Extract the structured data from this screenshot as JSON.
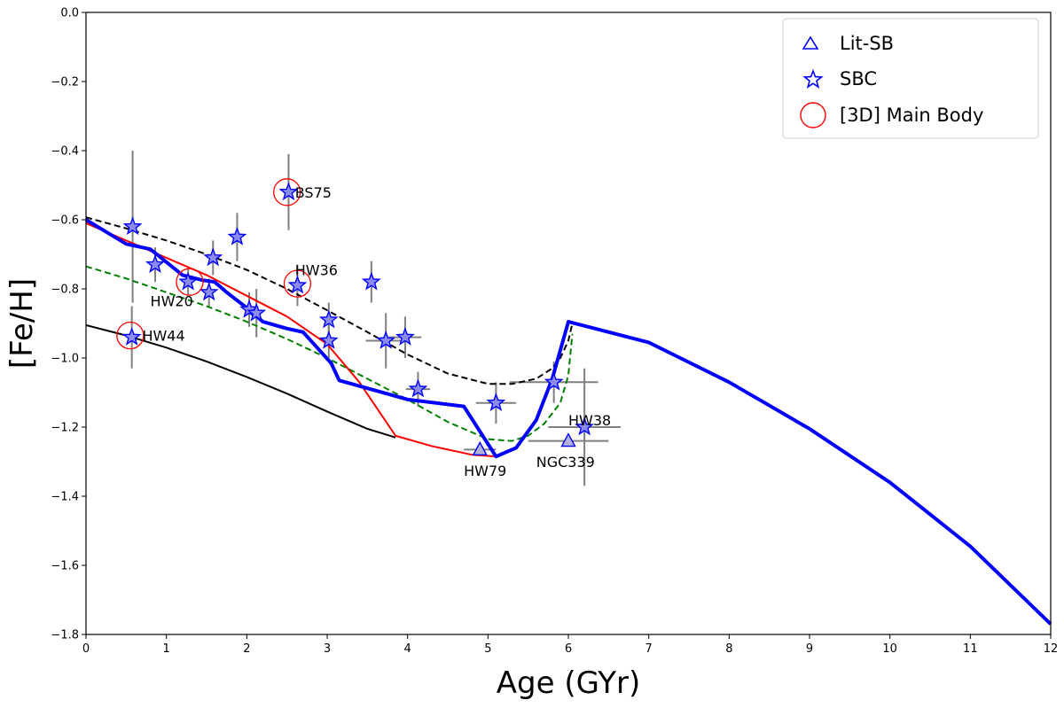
{
  "chart_data": {
    "type": "line",
    "title": "",
    "xlabel": "Age (GYr)",
    "ylabel": "[Fe/H]",
    "xlim": [
      0,
      12
    ],
    "ylim": [
      -1.8,
      0.0
    ],
    "xticks": [
      0,
      1,
      2,
      3,
      4,
      5,
      6,
      7,
      8,
      9,
      10,
      11,
      12
    ],
    "yticks": [
      0.0,
      -0.2,
      -0.4,
      -0.6,
      -0.8,
      -1.0,
      -1.2,
      -1.4,
      -1.6,
      -1.8
    ],
    "xtick_labels": [
      "0",
      "1",
      "2",
      "3",
      "4",
      "5",
      "6",
      "7",
      "8",
      "9",
      "10",
      "11",
      "12"
    ],
    "ytick_labels": [
      "0.0",
      "−0.2",
      "−0.4",
      "−0.6",
      "−0.8",
      "−1.0",
      "−1.2",
      "−1.4",
      "−1.6",
      "−1.8"
    ],
    "grid": false,
    "legend_position": "top-right",
    "legend": [
      {
        "label": "Lit-SB",
        "marker": "triangle",
        "color": "#0000ff"
      },
      {
        "label": "SBC",
        "marker": "star",
        "color": "#0000ff"
      },
      {
        "label": "[3D] Main Body",
        "marker": "circle",
        "color": "#ff0000"
      }
    ],
    "lines": [
      {
        "style": "dashed",
        "color": "#000000",
        "width": 2,
        "points": [
          [
            0,
            -0.593
          ],
          [
            0.5,
            -0.625
          ],
          [
            1,
            -0.66
          ],
          [
            1.5,
            -0.7
          ],
          [
            2,
            -0.745
          ],
          [
            2.5,
            -0.8
          ],
          [
            3,
            -0.862
          ],
          [
            3.5,
            -0.925
          ],
          [
            4,
            -0.99
          ],
          [
            4.5,
            -1.045
          ],
          [
            5,
            -1.075
          ],
          [
            5.3,
            -1.075
          ],
          [
            5.6,
            -1.06
          ],
          [
            5.8,
            -1.03
          ],
          [
            5.9,
            -1.0
          ],
          [
            6.0,
            -0.95
          ],
          [
            6.05,
            -0.9
          ]
        ]
      },
      {
        "style": "dashed",
        "color": "#008000",
        "width": 2,
        "points": [
          [
            0,
            -0.735
          ],
          [
            0.5,
            -0.77
          ],
          [
            1,
            -0.81
          ],
          [
            1.5,
            -0.85
          ],
          [
            2,
            -0.895
          ],
          [
            2.5,
            -0.945
          ],
          [
            3,
            -1.0
          ],
          [
            3.5,
            -1.06
          ],
          [
            4,
            -1.12
          ],
          [
            4.5,
            -1.185
          ],
          [
            5,
            -1.235
          ],
          [
            5.3,
            -1.24
          ],
          [
            5.5,
            -1.225
          ],
          [
            5.7,
            -1.19
          ],
          [
            5.9,
            -1.13
          ],
          [
            6.0,
            -1.05
          ],
          [
            6.05,
            -0.93
          ]
        ]
      },
      {
        "style": "solid",
        "color": "#000000",
        "width": 2,
        "points": [
          [
            0,
            -0.905
          ],
          [
            0.5,
            -0.935
          ],
          [
            1,
            -0.97
          ],
          [
            1.5,
            -1.01
          ],
          [
            2,
            -1.055
          ],
          [
            2.5,
            -1.103
          ],
          [
            3,
            -1.155
          ],
          [
            3.5,
            -1.205
          ],
          [
            3.85,
            -1.23
          ]
        ]
      },
      {
        "style": "solid",
        "color": "#ff0000",
        "width": 2,
        "points": [
          [
            0,
            -0.61
          ],
          [
            0.55,
            -0.665
          ],
          [
            1.0,
            -0.71
          ],
          [
            1.5,
            -0.76
          ],
          [
            2.0,
            -0.82
          ],
          [
            2.5,
            -0.88
          ],
          [
            3.0,
            -0.96
          ],
          [
            3.4,
            -1.07
          ],
          [
            3.85,
            -1.225
          ],
          [
            4.3,
            -1.255
          ],
          [
            4.8,
            -1.28
          ],
          [
            5.1,
            -1.285
          ]
        ]
      },
      {
        "style": "solid",
        "color": "#0000ff",
        "width": 4,
        "points": [
          [
            0,
            -0.6
          ],
          [
            0.5,
            -0.67
          ],
          [
            0.8,
            -0.685
          ],
          [
            1.2,
            -0.76
          ],
          [
            1.45,
            -0.775
          ],
          [
            1.6,
            -0.78
          ],
          [
            1.75,
            -0.81
          ],
          [
            2.0,
            -0.855
          ],
          [
            2.2,
            -0.895
          ],
          [
            2.5,
            -0.915
          ],
          [
            2.7,
            -0.925
          ],
          [
            3.05,
            -1.015
          ],
          [
            3.15,
            -1.065
          ],
          [
            4.0,
            -1.12
          ],
          [
            4.7,
            -1.14
          ],
          [
            5.1,
            -1.285
          ],
          [
            5.35,
            -1.26
          ],
          [
            5.6,
            -1.18
          ],
          [
            5.8,
            -1.06
          ],
          [
            6.0,
            -0.895
          ],
          [
            7,
            -0.955
          ],
          [
            8,
            -1.07
          ],
          [
            9,
            -1.205
          ],
          [
            10,
            -1.36
          ],
          [
            11,
            -1.545
          ],
          [
            12,
            -1.77
          ]
        ]
      }
    ],
    "sbc_points": [
      {
        "x": 0.58,
        "y": -0.62,
        "yerr": 0.22
      },
      {
        "x": 0.86,
        "y": -0.73,
        "yerr": 0.05
      },
      {
        "x": 1.27,
        "y": -0.78,
        "yerr": 0.04
      },
      {
        "x": 1.53,
        "y": -0.81,
        "yerr": 0.04
      },
      {
        "x": 1.58,
        "y": -0.71,
        "yerr": 0.05
      },
      {
        "x": 1.88,
        "y": -0.65,
        "yerr": 0.07
      },
      {
        "x": 2.03,
        "y": -0.86,
        "yerr": 0.05
      },
      {
        "x": 2.12,
        "y": -0.87,
        "yerr": 0.07
      },
      {
        "x": 2.52,
        "y": -0.52,
        "yerr": 0.11
      },
      {
        "x": 2.63,
        "y": -0.79,
        "yerr": 0.06
      },
      {
        "x": 3.02,
        "y": -0.89,
        "yerr": 0.05
      },
      {
        "x": 3.02,
        "y": -0.95,
        "yerr": 0.05
      },
      {
        "x": 3.55,
        "y": -0.78,
        "yerr": 0.06
      },
      {
        "x": 3.73,
        "y": -0.95,
        "yerr": 0.08,
        "xerr": 0.25
      },
      {
        "x": 3.97,
        "y": -0.94,
        "yerr": 0.06,
        "xerr": 0.2
      },
      {
        "x": 4.13,
        "y": -1.09,
        "yerr": 0.05,
        "xerr": 0.15
      },
      {
        "x": 5.1,
        "y": -1.13,
        "yerr": 0.06,
        "xerr": 0.25
      },
      {
        "x": 5.82,
        "y": -1.07,
        "yerr": 0.06,
        "xerr": 0.55
      },
      {
        "x": 0.57,
        "y": -0.94,
        "yerr": 0.09
      },
      {
        "x": 6.2,
        "y": -1.2,
        "yerr": 0.17,
        "xerr": 0.45
      }
    ],
    "lit_points": [
      {
        "x": 4.9,
        "y": -1.265,
        "yerr": 0.0,
        "xerr": 0.2
      },
      {
        "x": 6.0,
        "y": -1.24,
        "yerr": 0.0,
        "xerr": 0.5
      }
    ],
    "main_body_circles": [
      {
        "x": 0.55,
        "y": -0.935
      },
      {
        "x": 1.29,
        "y": -0.78
      },
      {
        "x": 2.5,
        "y": -0.52
      },
      {
        "x": 2.63,
        "y": -0.785
      }
    ],
    "annotations": [
      {
        "text": "BS75",
        "x": 2.6,
        "y": -0.52
      },
      {
        "text": "HW36",
        "x": 2.6,
        "y": -0.745
      },
      {
        "text": "HW20",
        "x": 0.8,
        "y": -0.835
      },
      {
        "text": "HW44",
        "x": 0.7,
        "y": -0.935
      },
      {
        "text": "HW79",
        "x": 4.7,
        "y": -1.325
      },
      {
        "text": "NGC339",
        "x": 5.6,
        "y": -1.3
      },
      {
        "text": "HW38",
        "x": 6.0,
        "y": -1.18
      }
    ]
  }
}
